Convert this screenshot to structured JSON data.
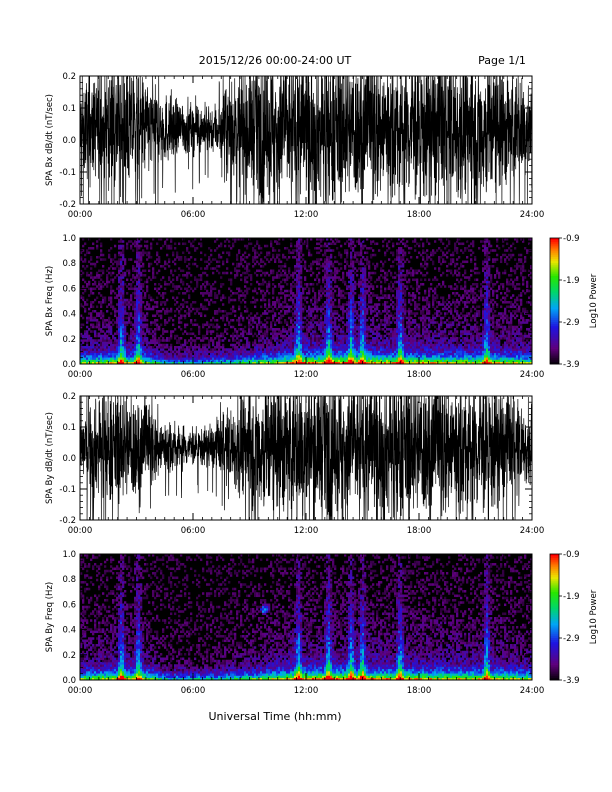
{
  "header": {
    "title": "2015/12/26  00:00-24:00 UT",
    "page": "Page 1/1"
  },
  "footer": {
    "xlabel": "Universal Time (hh:mm)"
  },
  "chart_data": [
    {
      "type": "line",
      "ylabel": "SPA Bx dB/dt (nT/sec)",
      "xlim": [
        "00:00",
        "24:00"
      ],
      "ylim": [
        -0.2,
        0.2
      ],
      "xticks": [
        "00:00",
        "06:00",
        "12:00",
        "18:00",
        "24:00"
      ],
      "yticks": [
        "-0.2",
        "-0.1",
        "0.0",
        "0.1",
        "0.2"
      ],
      "series_color": "#000000",
      "amplitude_envelope": {
        "hours": [
          0,
          1,
          2,
          3,
          4,
          5,
          6,
          7,
          8,
          9,
          10,
          11,
          12,
          13,
          14,
          15,
          16,
          17,
          18,
          19,
          20,
          21,
          22,
          23,
          24
        ],
        "half_range": [
          0.13,
          0.15,
          0.17,
          0.16,
          0.11,
          0.08,
          0.07,
          0.06,
          0.12,
          0.18,
          0.2,
          0.2,
          0.2,
          0.2,
          0.2,
          0.2,
          0.2,
          0.2,
          0.2,
          0.2,
          0.2,
          0.2,
          0.2,
          0.15,
          0.12
        ]
      }
    },
    {
      "type": "heatmap",
      "ylabel": "SPA Bx Freq (Hz)",
      "xlim": [
        "00:00",
        "24:00"
      ],
      "ylim": [
        0.0,
        1.0
      ],
      "xticks": [
        "00:00",
        "06:00",
        "12:00",
        "18:00",
        "24:00"
      ],
      "yticks": [
        "0.0",
        "0.2",
        "0.4",
        "0.6",
        "0.8",
        "1.0"
      ],
      "colorbar": {
        "label": "Log10 Power",
        "ticks": [
          "-0.9",
          "-1.9",
          "-2.9",
          "-3.9"
        ],
        "range": [
          -3.9,
          -0.9
        ]
      },
      "activity_bursts_hours": [
        2.2,
        3.1,
        11.6,
        13.2,
        14.4,
        15.0,
        17.0,
        21.6
      ],
      "features": []
    },
    {
      "type": "line",
      "ylabel": "SPA By dB/dt (nT/sec)",
      "xlim": [
        "00:00",
        "24:00"
      ],
      "ylim": [
        -0.2,
        0.2
      ],
      "xticks": [
        "00:00",
        "06:00",
        "12:00",
        "18:00",
        "24:00"
      ],
      "yticks": [
        "-0.2",
        "-0.1",
        "0.0",
        "0.1",
        "0.2"
      ],
      "series_color": "#000000",
      "amplitude_envelope": {
        "hours": [
          0,
          1,
          2,
          3,
          4,
          5,
          6,
          7,
          8,
          9,
          10,
          11,
          12,
          13,
          14,
          15,
          16,
          17,
          18,
          19,
          20,
          21,
          22,
          23,
          24
        ],
        "half_range": [
          0.12,
          0.14,
          0.16,
          0.15,
          0.1,
          0.07,
          0.05,
          0.06,
          0.11,
          0.17,
          0.2,
          0.2,
          0.2,
          0.2,
          0.2,
          0.2,
          0.2,
          0.2,
          0.2,
          0.2,
          0.2,
          0.2,
          0.18,
          0.13,
          0.1
        ]
      }
    },
    {
      "type": "heatmap",
      "ylabel": "SPA By Freq (Hz)",
      "xlim": [
        "00:00",
        "24:00"
      ],
      "ylim": [
        0.0,
        1.0
      ],
      "xticks": [
        "00:00",
        "06:00",
        "12:00",
        "18:00",
        "24:00"
      ],
      "yticks": [
        "0.0",
        "0.2",
        "0.4",
        "0.6",
        "0.8",
        "1.0"
      ],
      "colorbar": {
        "label": "Log10 Power",
        "ticks": [
          "-0.9",
          "-1.9",
          "-2.9",
          "-3.9"
        ],
        "range": [
          -3.9,
          -0.9
        ]
      },
      "activity_bursts_hours": [
        2.2,
        3.1,
        11.6,
        13.2,
        14.4,
        15.0,
        17.0,
        21.6
      ],
      "features": [
        {
          "hour": 9.8,
          "freq": 0.56
        }
      ]
    }
  ]
}
